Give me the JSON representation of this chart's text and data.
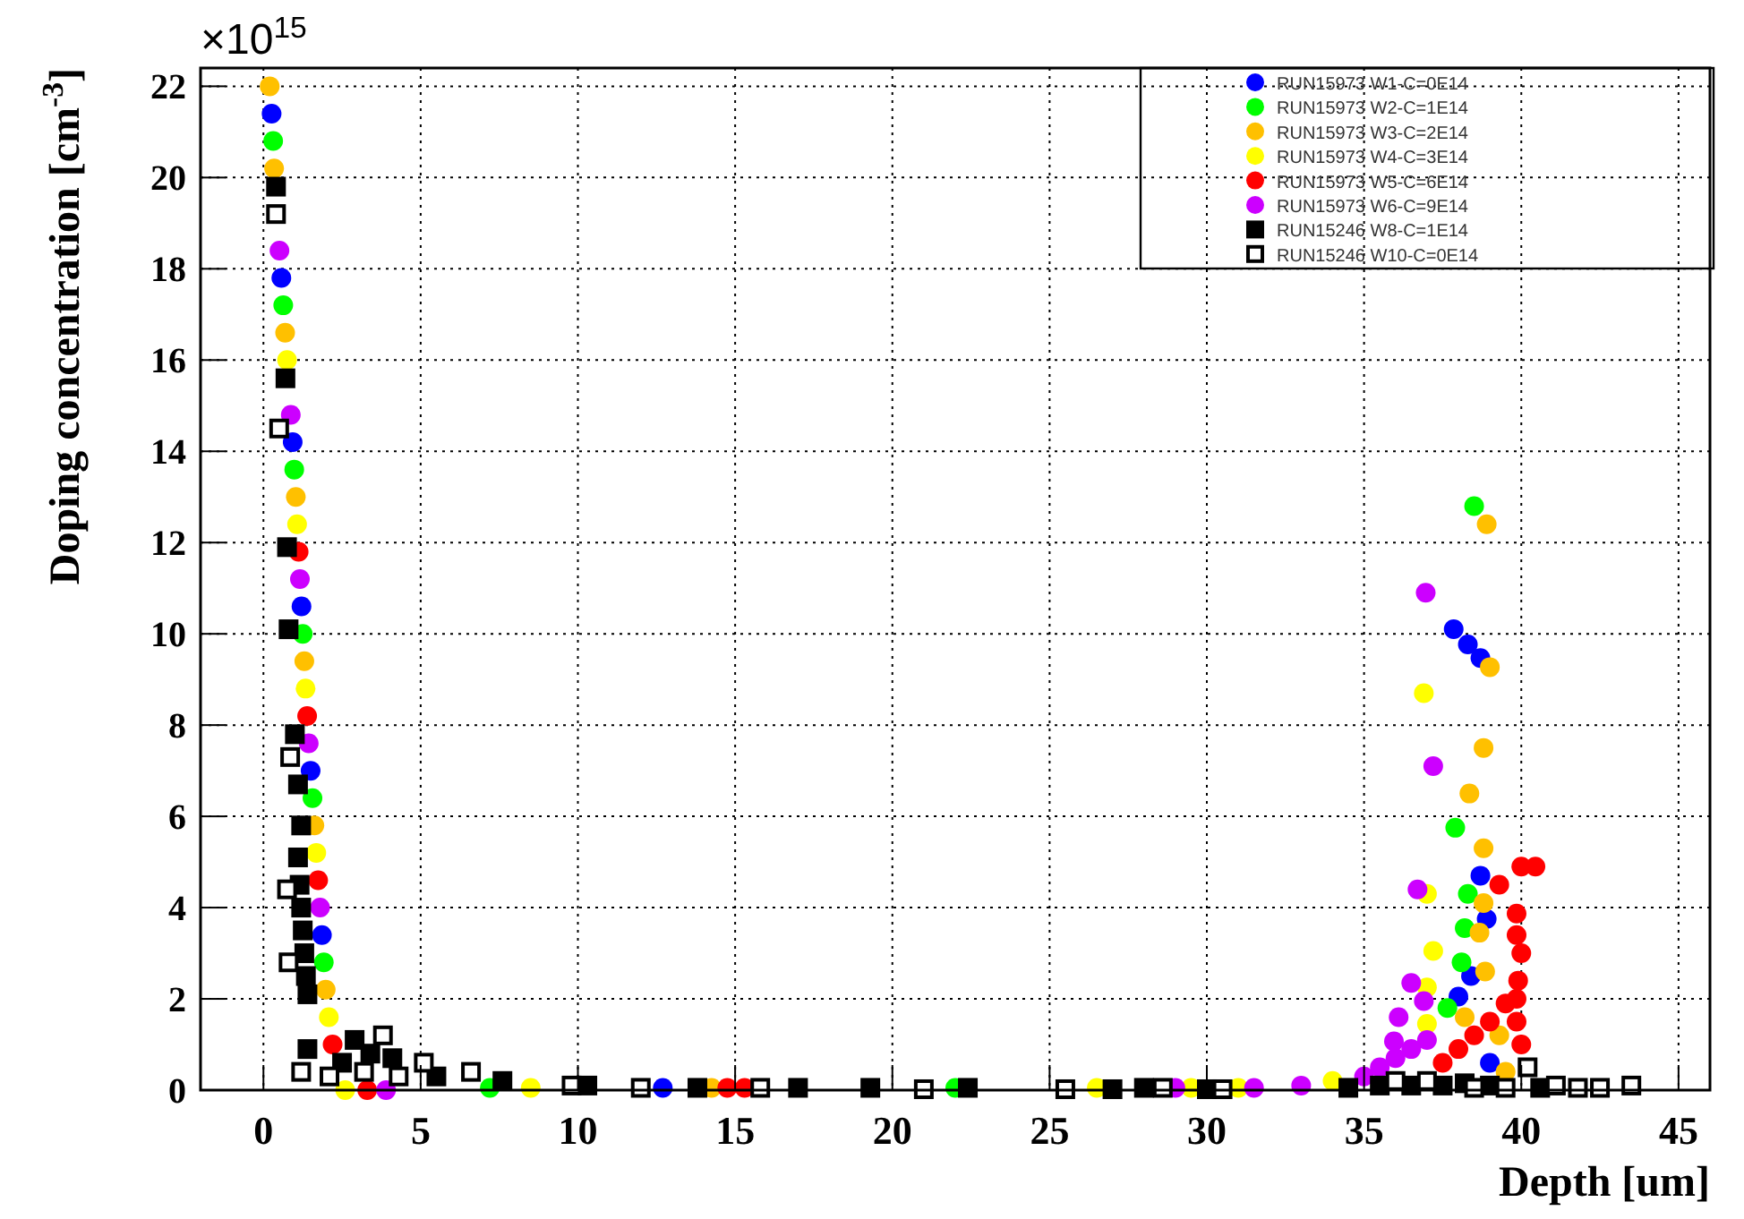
{
  "chart_data": {
    "type": "scatter",
    "xlabel": "Depth [um]",
    "ylabel": "Doping concentration [cm$^{-3}$]",
    "annotations": [
      "×10$^{15}$"
    ],
    "xlim": [
      -2,
      46
    ],
    "ylim": [
      0,
      22.4
    ],
    "xticks": [
      0,
      5,
      10,
      15,
      20,
      25,
      30,
      35,
      40,
      45
    ],
    "yticks": [
      0,
      2,
      4,
      6,
      8,
      10,
      12,
      14,
      16,
      18,
      20,
      22
    ],
    "grid": true,
    "legend": "top right",
    "marker": "circle",
    "series": [
      {
        "name": "RUN15973 W1-C=0E14",
        "color": "#0000ff",
        "x": [
          0.26,
          0.57,
          0.93,
          1.21,
          1.5,
          1.86,
          12.7,
          37.85,
          38.3,
          38.7,
          38.7,
          38.9,
          38.4,
          38.0,
          39.0
        ],
        "values": [
          21.4,
          17.8,
          14.2,
          10.6,
          7.0,
          3.4,
          0.05,
          10.1,
          9.77,
          9.47,
          4.7,
          3.75,
          2.5,
          2.05,
          0.6
        ]
      },
      {
        "name": "RUN15973 W2-C=1E14",
        "color": "#00ff00",
        "x": [
          0.31,
          0.63,
          0.98,
          1.25,
          1.56,
          1.92,
          7.2,
          22.0,
          37.65,
          38.1,
          38.2,
          38.3,
          38.5,
          37.9
        ],
        "values": [
          20.8,
          17.2,
          13.6,
          10.0,
          6.4,
          2.8,
          0.05,
          0.05,
          1.8,
          2.8,
          3.55,
          4.3,
          12.8,
          5.75
        ]
      },
      {
        "name": "RUN15973 W3-C=2E14",
        "color": "#ffc000",
        "x": [
          0.2,
          0.34,
          0.69,
          1.03,
          1.3,
          1.62,
          1.98,
          14.25,
          38.2,
          38.9,
          39.0,
          38.8,
          38.35,
          38.8,
          38.8,
          38.67,
          38.85,
          39.3,
          39.5
        ],
        "values": [
          22.0,
          20.2,
          16.6,
          13.0,
          9.4,
          5.8,
          2.2,
          0.05,
          1.6,
          12.4,
          9.27,
          7.5,
          6.5,
          5.3,
          4.1,
          3.45,
          2.6,
          1.2,
          0.4
        ]
      },
      {
        "name": "RUN15973 W4-C=3E14",
        "color": "#ffff00",
        "x": [
          0.75,
          1.07,
          1.34,
          1.68,
          2.08,
          2.6,
          8.5,
          26.5,
          29.5,
          31.0,
          34.0,
          36.9,
          37.0,
          37.2,
          37.0,
          37.0
        ],
        "values": [
          16.0,
          12.4,
          8.8,
          5.2,
          1.6,
          0,
          0.05,
          0.05,
          0.05,
          0.05,
          0.2,
          8.7,
          4.3,
          3.05,
          2.25,
          1.45
        ]
      },
      {
        "name": "RUN15973 W5-C=6E14",
        "color": "#ff0000",
        "x": [
          1.12,
          1.39,
          1.74,
          2.2,
          3.3,
          14.75,
          15.3,
          37.5,
          38.0,
          38.5,
          39.0,
          39.5,
          39.85,
          40.0,
          40.0,
          40.45,
          39.3,
          39.85,
          39.85,
          40.0,
          39.9,
          39.85
        ],
        "values": [
          11.8,
          8.2,
          4.6,
          1.0,
          0,
          0.05,
          0.05,
          0.6,
          0.9,
          1.2,
          1.5,
          1.9,
          1.5,
          1.0,
          4.9,
          4.9,
          4.5,
          3.87,
          3.4,
          3.0,
          2.4,
          2.0
        ]
      },
      {
        "name": "RUN15973 W6-C=9E14",
        "color": "#cc00ff",
        "x": [
          0.51,
          0.87,
          1.16,
          1.44,
          1.8,
          3.9,
          29.0,
          31.5,
          33.0,
          35.0,
          35.5,
          36.0,
          36.5,
          37.0,
          35.95,
          36.1,
          36.9,
          36.5,
          36.7,
          37.2,
          36.96
        ],
        "values": [
          18.4,
          14.8,
          11.2,
          7.6,
          4.0,
          0,
          0.05,
          0.05,
          0.1,
          0.3,
          0.5,
          0.7,
          0.9,
          1.1,
          1.07,
          1.6,
          1.95,
          2.35,
          4.4,
          7.1,
          10.9
        ]
      },
      {
        "name": "RUN15246 W8-C=1E14",
        "color": "#000000",
        "marker": "square",
        "x": [
          0.4,
          0.7,
          0.75,
          0.8,
          1.0,
          1.1,
          1.2,
          1.1,
          1.15,
          1.2,
          1.25,
          1.3,
          1.35,
          1.4,
          1.4,
          2.5,
          2.9,
          3.4,
          4.1,
          5.5,
          7.6,
          10.3,
          13.8,
          17.0,
          19.3,
          22.4,
          27.0,
          28.0,
          30.0,
          34.5,
          35.5,
          36.5,
          37.5,
          38.2,
          39.0,
          40.6
        ],
        "values": [
          19.8,
          15.6,
          11.9,
          10.1,
          7.8,
          6.7,
          5.8,
          5.1,
          4.5,
          4.0,
          3.5,
          3.0,
          2.5,
          2.1,
          0.9,
          0.6,
          1.1,
          0.8,
          0.7,
          0.3,
          0.2,
          0.1,
          0.05,
          0.05,
          0.05,
          0.05,
          0.02,
          0.05,
          0.02,
          0.05,
          0.1,
          0.1,
          0.1,
          0.15,
          0.1,
          0.05
        ]
      },
      {
        "name": "RUN15246 W10-C=0E14",
        "color": "#ffffff",
        "marker": "square",
        "x": [
          0.4,
          0.5,
          0.85,
          0.75,
          0.8,
          1.2,
          2.1,
          3.2,
          3.8,
          4.3,
          5.1,
          6.6,
          9.8,
          12.0,
          15.8,
          21.0,
          25.5,
          28.6,
          30.5,
          36.0,
          37.0,
          38.5,
          39.5,
          40.2,
          41.1,
          41.8,
          42.5,
          43.5
        ],
        "values": [
          19.2,
          14.5,
          7.3,
          4.4,
          2.8,
          0.4,
          0.3,
          0.4,
          1.2,
          0.3,
          0.6,
          0.4,
          0.1,
          0.05,
          0.05,
          0.02,
          0.02,
          0.05,
          0.02,
          0.2,
          0.2,
          0.05,
          0.05,
          0.5,
          0.1,
          0.05,
          0.05,
          0.1
        ]
      }
    ]
  }
}
